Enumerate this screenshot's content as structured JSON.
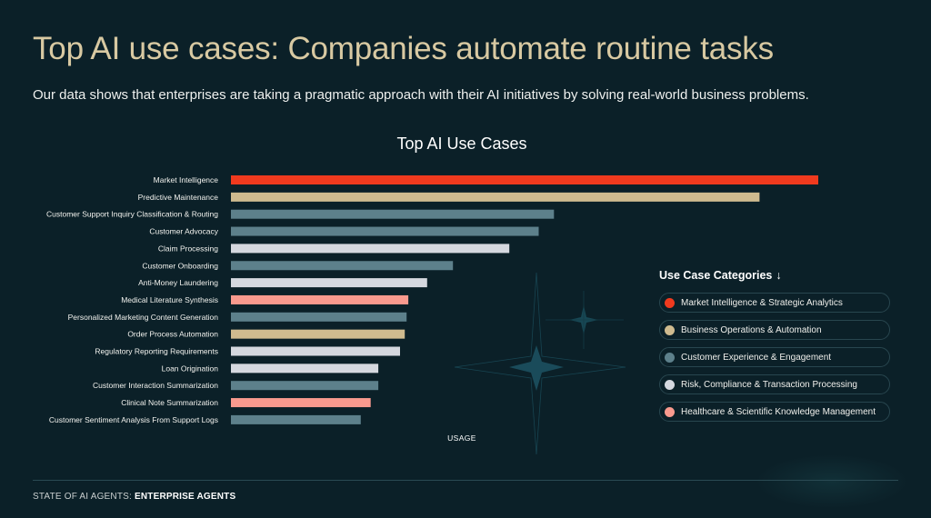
{
  "header": {
    "title": "Top AI use cases: Companies automate routine tasks",
    "subtitle": "Our data shows that enterprises are taking a pragmatic approach with their AI initiatives by solving real-world business problems."
  },
  "legend": {
    "title": "Use Case Categories",
    "arrow": "↓",
    "items": [
      {
        "label": "Market Intelligence & Strategic Analytics",
        "color": "#f03a1e"
      },
      {
        "label": "Business Operations & Automation",
        "color": "#cfbb8f"
      },
      {
        "label": "Customer Experience & Engagement",
        "color": "#5d808b"
      },
      {
        "label": "Risk, Compliance & Transaction Processing",
        "color": "#d5d8df"
      },
      {
        "label": "Healthcare & Scientific Knowledge Management",
        "color": "#f99a8e"
      }
    ]
  },
  "footer": {
    "prefix": "STATE OF AI AGENTS: ",
    "bold": "ENTERPRISE AGENTS"
  },
  "chart_data": {
    "type": "bar",
    "orientation": "horizontal",
    "title": "Top AI Use Cases",
    "xlabel": "USAGE",
    "ylabel": "",
    "xlim": [
      0,
      100
    ],
    "grid": false,
    "legend_position": "right",
    "categories": [
      "Market Intelligence",
      "Predictive Maintenance",
      "Customer Support Inquiry Classification & Routing",
      "Customer Advocacy",
      "Claim Processing",
      "Customer Onboarding",
      "Anti-Money Laundering",
      "Medical Literature Synthesis",
      "Personalized Marketing Content Generation",
      "Order Process Automation",
      "Regulatory Reporting Requirements",
      "Loan Origination",
      "Customer Interaction Summarization",
      "Clinical Note Summarization",
      "Customer Sentiment Analysis From Support Logs"
    ],
    "values": [
      100,
      90,
      55,
      52.4,
      47.4,
      37.8,
      33.4,
      30.2,
      29.9,
      29.6,
      28.8,
      25.1,
      25.1,
      23.8,
      22.1
    ],
    "category_group": [
      0,
      1,
      2,
      2,
      3,
      2,
      3,
      4,
      2,
      1,
      3,
      3,
      2,
      4,
      2
    ]
  }
}
